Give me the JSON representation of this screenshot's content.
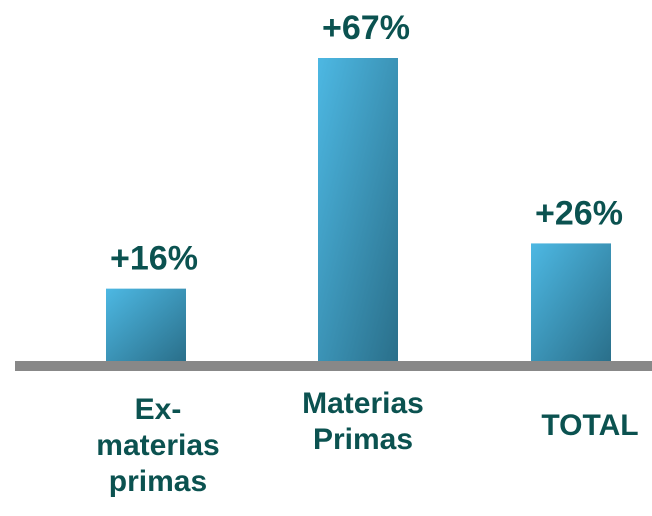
{
  "chart_data": {
    "type": "bar",
    "categories": [
      "Ex-materias primas",
      "Materias Primas",
      "TOTAL"
    ],
    "category_lines": [
      [
        "Ex-",
        "materias",
        "primas"
      ],
      [
        "Materias",
        "Primas"
      ],
      [
        "TOTAL"
      ]
    ],
    "values": [
      16,
      67,
      26
    ],
    "data_labels": [
      "+16%",
      "+67%",
      "+26%"
    ],
    "ylim": [
      0,
      67
    ],
    "grid": false,
    "colors": {
      "bar_light": "#4db8e3",
      "bar_dark": "#2a6f8a",
      "baseline": "#888888",
      "label": "#0b5250"
    }
  }
}
